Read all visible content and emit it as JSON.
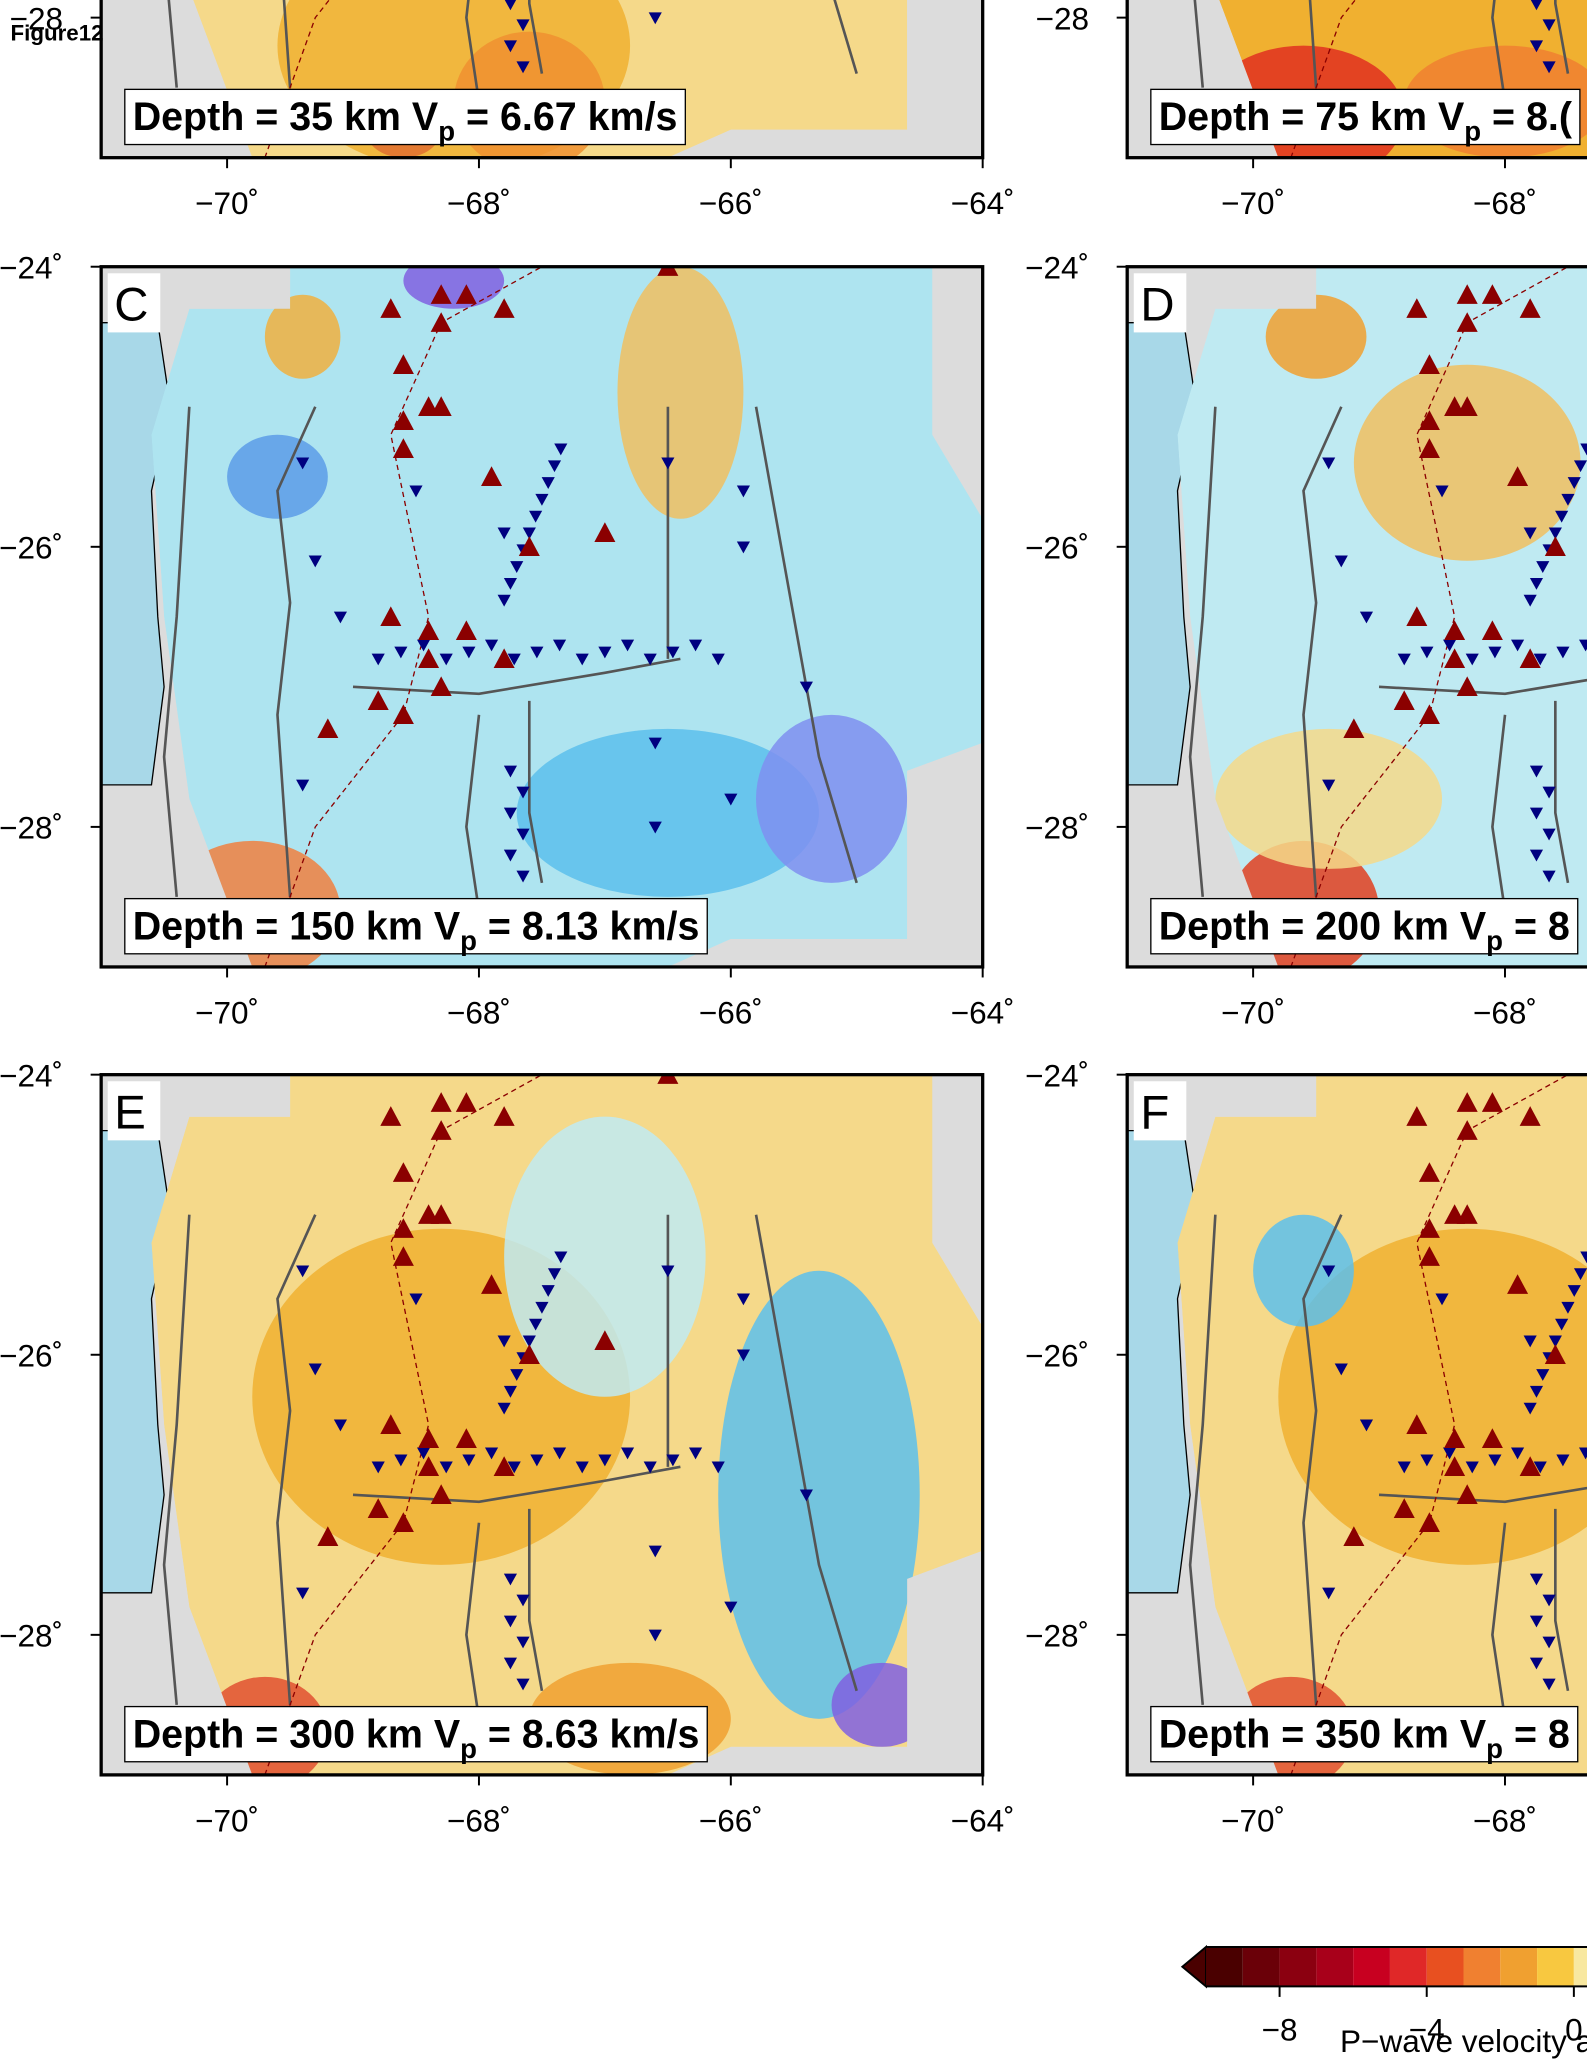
{
  "figure_label": "Figure12",
  "lonlim": [
    -71,
    -64
  ],
  "latlim": [
    -29,
    -24
  ],
  "panels": [
    {
      "depth": [
        "Depth = 35 km V",
        "p",
        " = 6.67 km/s"
      ],
      "lon_ticks": [
        {
          "value": -70,
          "label": "−70˚"
        },
        {
          "value": -68,
          "label": "−68˚"
        },
        {
          "value": -66,
          "label": "−66˚"
        },
        {
          "value": -64,
          "label": "−64˚"
        }
      ],
      "lat_ticks": [
        {
          "value": -28,
          "label": "−28"
        }
      ]
    },
    {
      "depth": [
        "Depth = 75 km V",
        "p",
        " = 8.("
      ],
      "lon_ticks": [
        {
          "value": -70,
          "label": "−70˚"
        },
        {
          "value": -68,
          "label": "−68˚"
        }
      ],
      "lat_ticks": [
        {
          "value": -28,
          "label": "−28"
        }
      ]
    },
    {
      "letter": "C",
      "depth": [
        "Depth = 150 km V",
        "p",
        " = 8.13 km/s"
      ],
      "lon_ticks": [
        {
          "value": -70,
          "label": "−70˚"
        },
        {
          "value": -68,
          "label": "−68˚"
        },
        {
          "value": -66,
          "label": "−66˚"
        },
        {
          "value": -64,
          "label": "−64˚"
        }
      ],
      "lat_ticks": [
        {
          "value": -24,
          "label": "−24˚"
        },
        {
          "value": -26,
          "label": "−26˚"
        },
        {
          "value": -28,
          "label": "−28˚"
        }
      ]
    },
    {
      "letter": "D",
      "depth": [
        "Depth = 200 km V",
        "p",
        " = 8"
      ],
      "lon_ticks": [
        {
          "value": -70,
          "label": "−70˚"
        },
        {
          "value": -68,
          "label": "−68˚"
        }
      ],
      "lat_ticks": [
        {
          "value": -24,
          "label": "−24˚"
        },
        {
          "value": -26,
          "label": "−26˚"
        },
        {
          "value": -28,
          "label": "−28˚"
        }
      ]
    },
    {
      "letter": "E",
      "depth": [
        "Depth = 300 km V",
        "p",
        " = 8.63 km/s"
      ],
      "lon_ticks": [
        {
          "value": -70,
          "label": "−70˚"
        },
        {
          "value": -68,
          "label": "−68˚"
        },
        {
          "value": -66,
          "label": "−66˚"
        },
        {
          "value": -64,
          "label": "−64˚"
        }
      ],
      "lat_ticks": [
        {
          "value": -24,
          "label": "−24˚"
        },
        {
          "value": -26,
          "label": "−26˚"
        },
        {
          "value": -28,
          "label": "−28˚"
        }
      ]
    },
    {
      "letter": "F",
      "depth": [
        "Depth = 350 km V",
        "p",
        " = 8"
      ],
      "lon_ticks": [
        {
          "value": -70,
          "label": "−70˚"
        },
        {
          "value": -68,
          "label": "−68˚"
        }
      ],
      "lat_ticks": [
        {
          "value": -24,
          "label": "−24˚"
        },
        {
          "value": -26,
          "label": "−26˚"
        },
        {
          "value": -28,
          "label": "−28˚"
        }
      ]
    }
  ],
  "colorbar": {
    "start": -10,
    "step": 1,
    "colors": [
      "#4a0000",
      "#6a0008",
      "#8b0010",
      "#a8001a",
      "#c80020",
      "#e02828",
      "#e85020",
      "#f08030",
      "#f0a030",
      "#f8c840",
      "#f8e8a0",
      "#d0f4f8"
    ],
    "ticks": [
      {
        "value": -8,
        "label": "−8"
      },
      {
        "value": -4,
        "label": "−4"
      },
      {
        "value": 0,
        "label": "0"
      }
    ],
    "label": "P−wave velocity a"
  }
}
